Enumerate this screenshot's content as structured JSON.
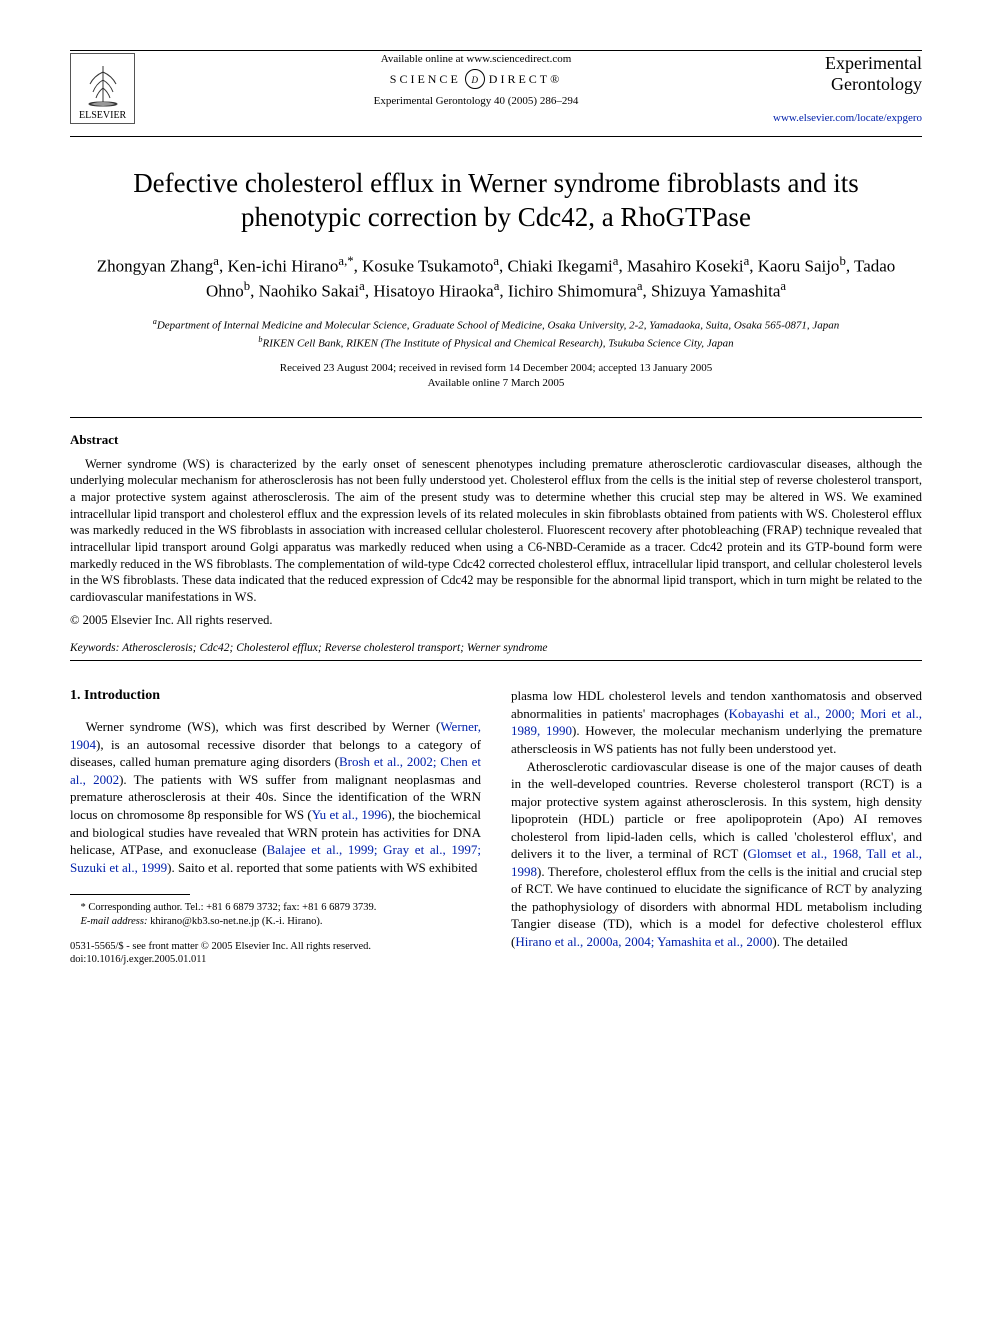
{
  "header": {
    "available": "Available online at www.sciencedirect.com",
    "sd_left": "SCIENCE",
    "sd_mid": "d",
    "sd_right": "DIRECT®",
    "journal_ref": "Experimental Gerontology 40 (2005) 286–294",
    "publisher": "ELSEVIER",
    "journal_brand_1": "Experimental",
    "journal_brand_2": "Gerontology",
    "journal_url": "www.elsevier.com/locate/expgero"
  },
  "title": "Defective cholesterol efflux in Werner syndrome fibroblasts and its phenotypic correction by Cdc42, a RhoGTPase",
  "authors_html": "Zhongyan Zhang<sup>a</sup>, Ken-ichi Hirano<sup>a,*</sup>, Kosuke Tsukamoto<sup>a</sup>, Chiaki Ikegami<sup>a</sup>, Masahiro Koseki<sup>a</sup>, Kaoru Saijo<sup>b</sup>, Tadao Ohno<sup>b</sup>, Naohiko Sakai<sup>a</sup>, Hisatoyo Hiraoka<sup>a</sup>, Iichiro Shimomura<sup>a</sup>, Shizuya Yamashita<sup>a</sup>",
  "affils": {
    "a": "Department of Internal Medicine and Molecular Science, Graduate School of Medicine, Osaka University, 2-2, Yamadaoka, Suita, Osaka 565-0871, Japan",
    "b": "RIKEN Cell Bank, RIKEN (The Institute of Physical and Chemical Research), Tsukuba Science City, Japan"
  },
  "dates": {
    "received": "Received 23 August 2004; received in revised form 14 December 2004; accepted 13 January 2005",
    "available": "Available online 7 March 2005"
  },
  "abstract_head": "Abstract",
  "abstract_body": "Werner syndrome (WS) is characterized by the early onset of senescent phenotypes including premature atherosclerotic cardiovascular diseases, although the underlying molecular mechanism for atherosclerosis has not been fully understood yet. Cholesterol efflux from the cells is the initial step of reverse cholesterol transport, a major protective system against atherosclerosis. The aim of the present study was to determine whether this crucial step may be altered in WS. We examined intracellular lipid transport and cholesterol efflux and the expression levels of its related molecules in skin fibroblasts obtained from patients with WS. Cholesterol efflux was markedly reduced in the WS fibroblasts in association with increased cellular cholesterol. Fluorescent recovery after photobleaching (FRAP) technique revealed that intracellular lipid transport around Golgi apparatus was markedly reduced when using a C6-NBD-Ceramide as a tracer. Cdc42 protein and its GTP-bound form were markedly reduced in the WS fibroblasts. The complementation of wild-type Cdc42 corrected cholesterol efflux, intracellular lipid transport, and cellular cholesterol levels in the WS fibroblasts. These data indicated that the reduced expression of Cdc42 may be responsible for the abnormal lipid transport, which in turn might be related to the cardiovascular manifestations in WS.",
  "copyright": "© 2005 Elsevier Inc. All rights reserved.",
  "keywords_label": "Keywords:",
  "keywords": "Atherosclerosis; Cdc42; Cholesterol efflux; Reverse cholesterol transport; Werner syndrome",
  "section1_head": "1. Introduction",
  "col_left_p1_a": "Werner syndrome (WS), which was first described by Werner (",
  "col_left_p1_cite1": "Werner, 1904",
  "col_left_p1_b": "), is an autosomal recessive disorder that belongs to a category of diseases, called human premature aging disorders (",
  "col_left_p1_cite2": "Brosh et al., 2002; Chen et al., 2002",
  "col_left_p1_c": "). The patients with WS suffer from malignant neoplasmas and premature atherosclerosis at their 40s. Since the identification of the WRN locus on chromosome 8p responsible for WS (",
  "col_left_p1_cite3": "Yu et al., 1996",
  "col_left_p1_d": "), the biochemical and biological studies have revealed that WRN protein has activities for DNA helicase, ATPase, and exonuclease (",
  "col_left_p1_cite4": "Balajee et al., 1999; Gray et al., 1997; Suzuki et al., 1999",
  "col_left_p1_e": "). Saito et al. reported that some patients with WS exhibited",
  "col_right_p1_a": "plasma low HDL cholesterol levels and tendon xanthomatosis and observed abnormalities in patients' macrophages (",
  "col_right_p1_cite1": "Kobayashi et al., 2000; Mori et al., 1989, 1990",
  "col_right_p1_b": "). However, the molecular mechanism underlying the premature atherscleosis in WS patients has not fully been understood yet.",
  "col_right_p2_a": "Atherosclerotic cardiovascular disease is one of the major causes of death in the well-developed countries. Reverse cholesterol transport (RCT) is a major protective system against atherosclerosis. In this system, high density lipoprotein (HDL) particle or free apolipoprotein (Apo) AI removes cholesterol from lipid-laden cells, which is called 'cholesterol efflux', and delivers it to the liver, a terminal of RCT (",
  "col_right_p2_cite1": "Glomset et al., 1968, Tall et al., 1998",
  "col_right_p2_b": "). Therefore, cholesterol efflux from the cells is the initial and crucial step of RCT. We have continued to elucidate the significance of RCT by analyzing the pathophysiology of disorders with abnormal HDL metabolism including Tangier disease (TD), which is a model for defective cholesterol efflux (",
  "col_right_p2_cite2": "Hirano et al., 2000a, 2004; Yamashita et al., 2000",
  "col_right_p2_c": "). The detailed",
  "footnote": {
    "corr": "* Corresponding author. Tel.: +81 6 6879 3732; fax: +81 6 6879 3739.",
    "email_label": "E-mail address:",
    "email": "khirano@kb3.so-net.ne.jp (K.-i. Hirano)."
  },
  "doi": {
    "line1": "0531-5565/$ - see front matter © 2005 Elsevier Inc. All rights reserved.",
    "line2": "doi:10.1016/j.exger.2005.01.011"
  },
  "colors": {
    "link": "#0020aa",
    "text": "#000000",
    "bg": "#ffffff",
    "rule": "#000000"
  }
}
